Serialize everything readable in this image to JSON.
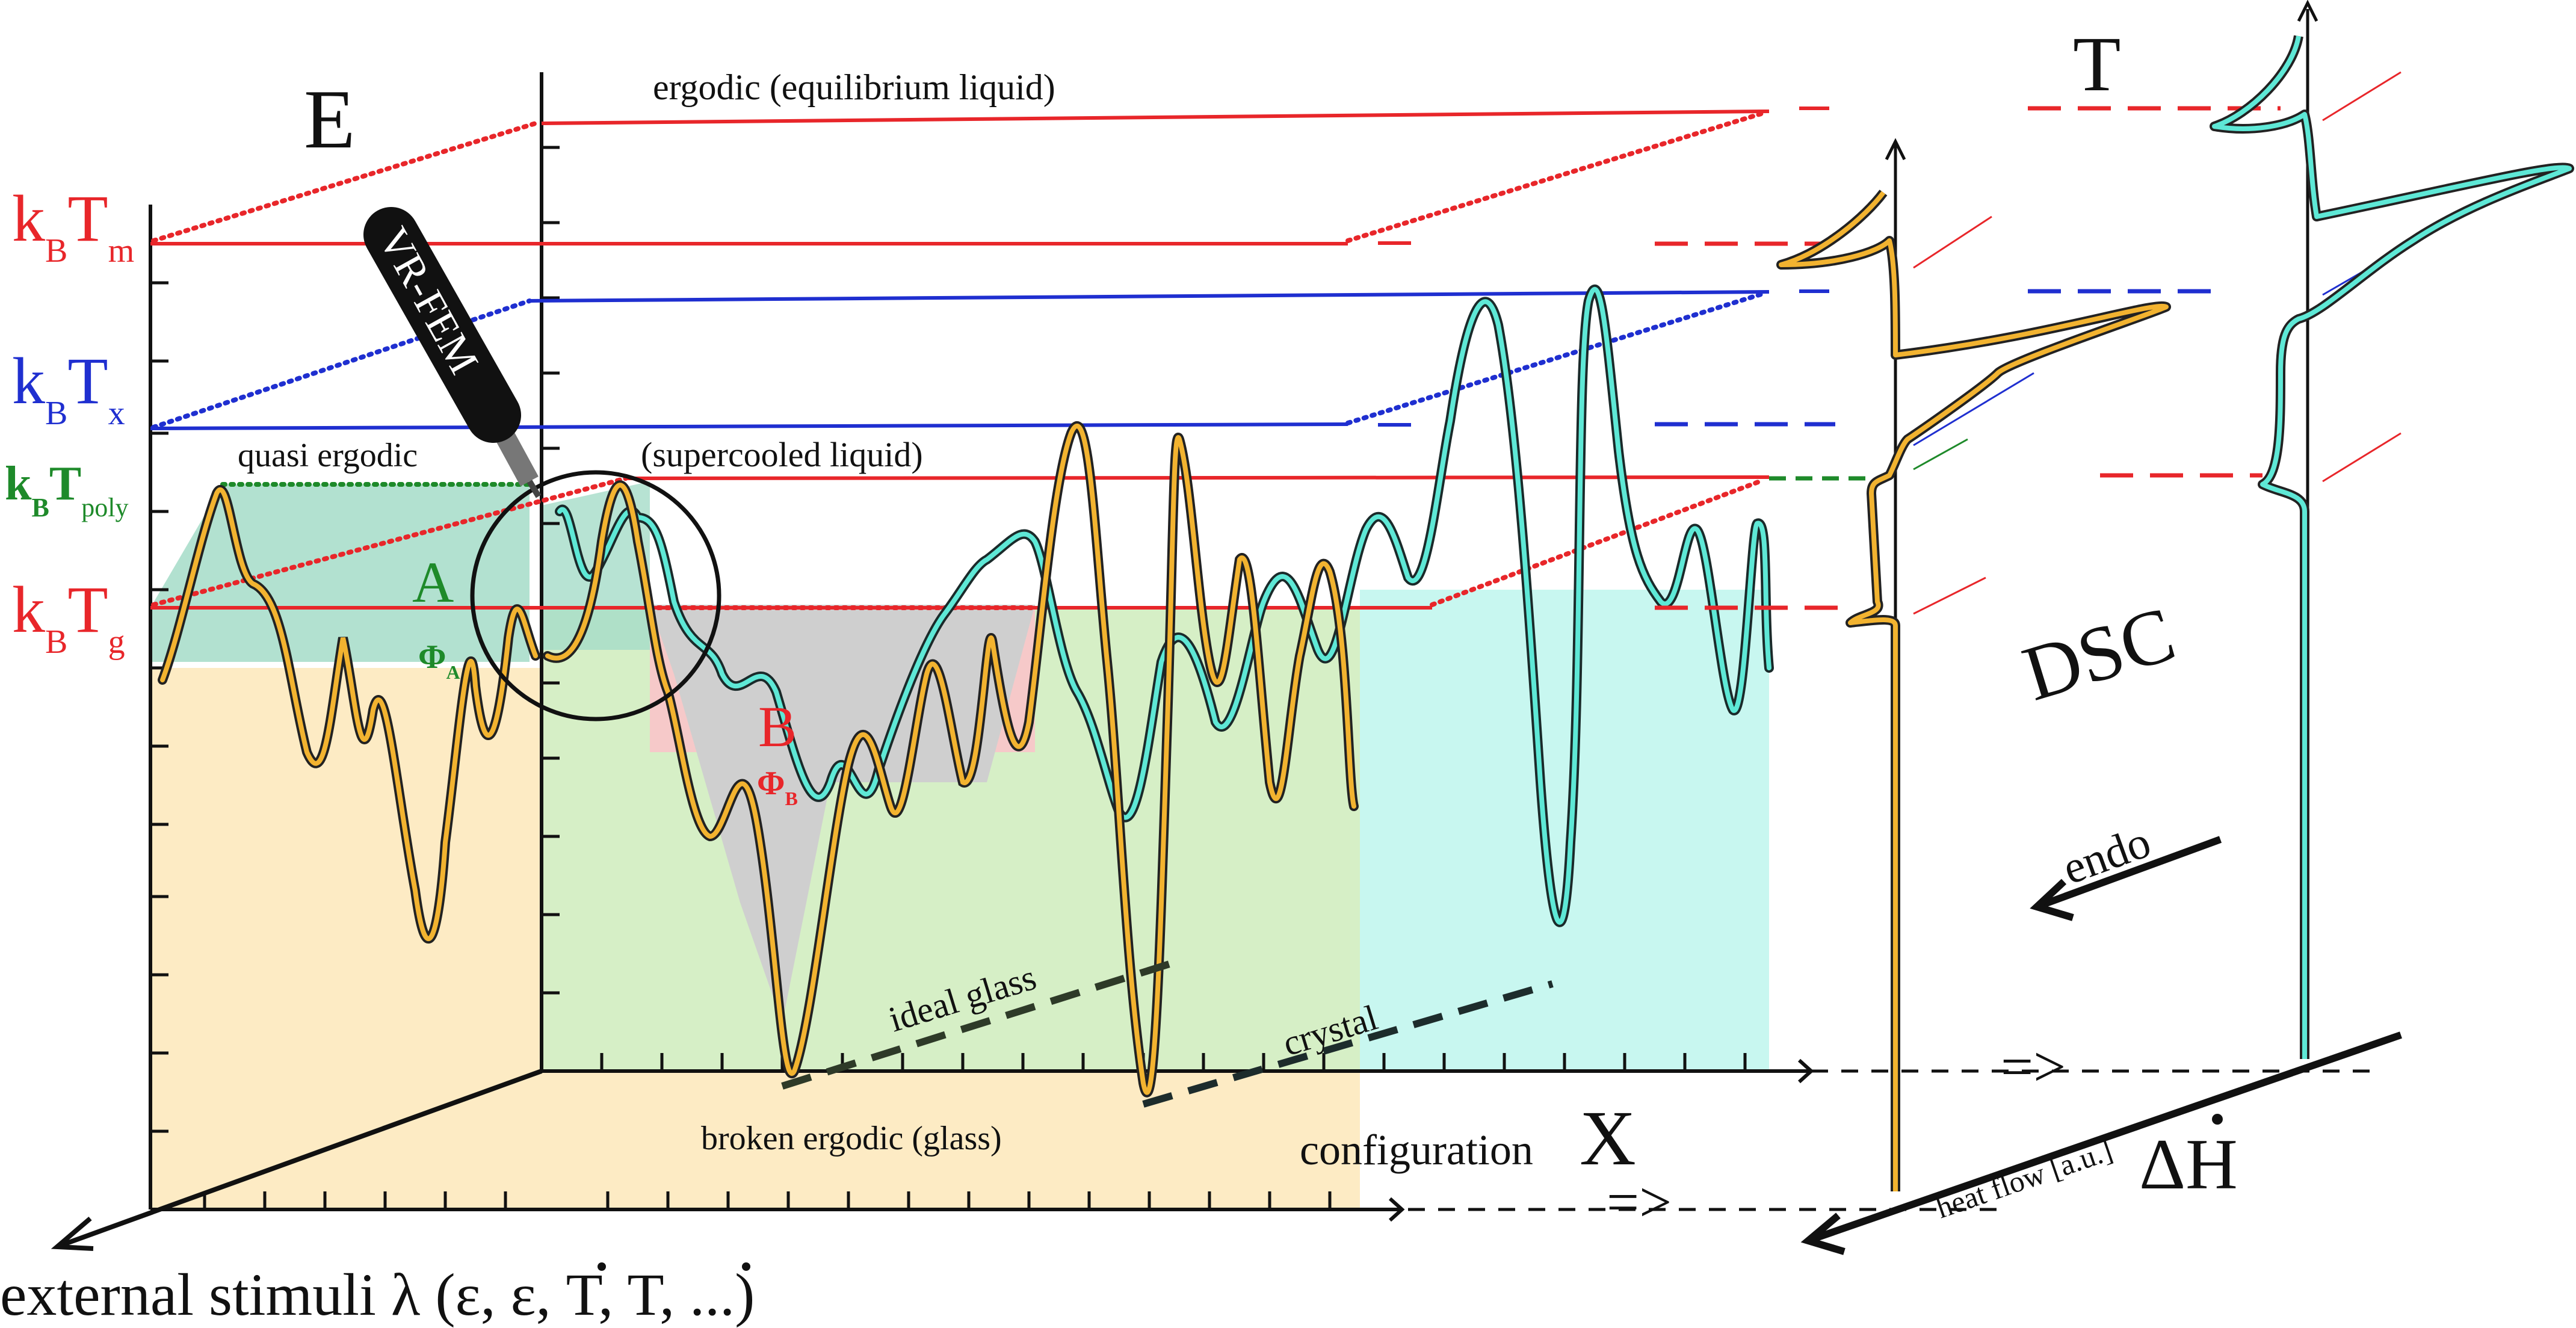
{
  "labels": {
    "energy_axis": "E",
    "kbtm_main": "k",
    "kbtm_sub1": "B",
    "kbtm_T": "T",
    "kbtm_sub2": "m",
    "kbtx_main": "k",
    "kbtx_sub1": "B",
    "kbtx_T": "T",
    "kbtx_sub2": "x",
    "kbtpoly_main": "k",
    "kbtpoly_sub1": "B",
    "kbtpoly_T": "T",
    "kbtpoly_sub2": "poly",
    "kbtg_main": "k",
    "kbtg_sub1": "B",
    "kbtg_T": "T",
    "kbtg_sub2": "g",
    "ergodic": "ergodic (equilibrium liquid)",
    "quasi_ergodic": "quasi ergodic",
    "supercooled": "(supercooled liquid)",
    "region_a": "A",
    "phi_a": "Φ",
    "phi_a_sub": "A",
    "region_b": "B",
    "phi_b": "Φ",
    "phi_b_sub": "B",
    "ideal_glass": "ideal glass",
    "crystal": "crystal",
    "broken_ergodic": "broken ergodic (glass)",
    "configuration": "configuration",
    "configuration_x": "X",
    "external_stimuli": "external stimuli λ (ε, ε, T, T, ...)",
    "probe": "VR-FEM",
    "temperature": "T",
    "dsc": "DSC",
    "endo": "endo",
    "heat_flow": "heat flow [a.u.]",
    "delta_h": "ΔH",
    "arrow_upper": "=>",
    "arrow_lower": "=>"
  },
  "colors": {
    "red": "#e8262a",
    "blue": "#1f2fd0",
    "green": "#1e8a2a",
    "orange_curve": "#f2b330",
    "cyan_curve": "#5ee8d6",
    "fill_orange": "#fdebc4",
    "fill_green": "#d6efc6",
    "fill_cyan": "#c8f7f0",
    "fill_gray": "#cfcfcf",
    "fill_pink": "#f6c9c9",
    "fill_teal": "#a5dcc8"
  }
}
